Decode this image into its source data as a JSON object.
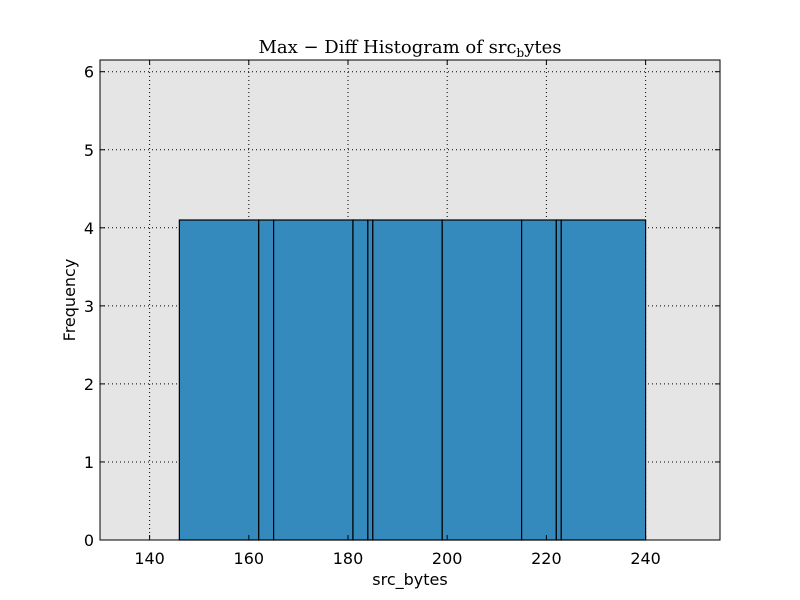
{
  "chart_data": {
    "type": "bar",
    "title": {
      "main": "Max − Diff Histogram of src",
      "subscript": "b",
      "suffix": "ytes"
    },
    "xlabel": "src_bytes",
    "ylabel": "Frequency",
    "xlim": [
      130,
      255
    ],
    "ylim": [
      0,
      6.15
    ],
    "xticks": [
      140,
      160,
      180,
      200,
      220,
      240
    ],
    "yticks": [
      0,
      1,
      2,
      3,
      4,
      5,
      6
    ],
    "grid": true,
    "bins": [
      {
        "left": 146,
        "right": 162,
        "value": 4.1
      },
      {
        "left": 162,
        "right": 165,
        "value": 4.1
      },
      {
        "left": 165,
        "right": 181,
        "value": 4.1
      },
      {
        "left": 181,
        "right": 184,
        "value": 4.1
      },
      {
        "left": 184,
        "right": 185,
        "value": 4.1
      },
      {
        "left": 185,
        "right": 199,
        "value": 4.1
      },
      {
        "left": 199,
        "right": 215,
        "value": 4.1
      },
      {
        "left": 215,
        "right": 222,
        "value": 4.1
      },
      {
        "left": 222,
        "right": 223,
        "value": 4.1
      },
      {
        "left": 223,
        "right": 240,
        "value": 4.1
      }
    ],
    "colors": {
      "bar_fill": "#348abd",
      "bar_edge": "#000000",
      "plot_background": "#e5e5e5"
    }
  }
}
